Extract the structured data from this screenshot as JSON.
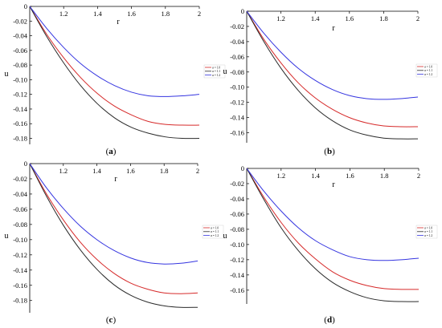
{
  "chart_data": [
    {
      "panel": "a",
      "type": "line",
      "xlabel": "r",
      "ylabel": "u",
      "xlim": [
        1.0,
        2.0
      ],
      "ylim": [
        -0.186,
        0.0
      ],
      "xticks": [
        "1.2",
        "1.4",
        "1.6",
        "1.8",
        "2"
      ],
      "xtick_values": [
        1.2,
        1.4,
        1.6,
        1.8,
        2.0
      ],
      "yticks": [
        "0",
        "-0.02",
        "-0.04",
        "-0.06",
        "-0.08",
        "-0.10",
        "-0.12",
        "-0.14",
        "-0.16",
        "-0.18"
      ],
      "ytick_values": [
        0,
        -0.02,
        -0.04,
        -0.06,
        -0.08,
        -0.1,
        -0.12,
        -0.14,
        -0.16,
        -0.18
      ],
      "legend_position": "right",
      "series": [
        {
          "name": "α = 1.0",
          "color": "#d62a2a",
          "x": [
            1.0,
            1.1,
            1.2,
            1.3,
            1.4,
            1.5,
            1.6,
            1.7,
            1.8,
            1.9,
            2.0
          ],
          "y": [
            0,
            -0.038,
            -0.07,
            -0.097,
            -0.119,
            -0.136,
            -0.148,
            -0.157,
            -0.161,
            -0.162,
            -0.162
          ]
        },
        {
          "name": "α = 1.1",
          "color": "#2a2a2a",
          "x": [
            1.0,
            1.1,
            1.2,
            1.3,
            1.4,
            1.5,
            1.6,
            1.7,
            1.8,
            1.9,
            2.0
          ],
          "y": [
            0,
            -0.041,
            -0.077,
            -0.108,
            -0.133,
            -0.152,
            -0.165,
            -0.173,
            -0.178,
            -0.18,
            -0.18
          ]
        },
        {
          "name": "α = 1.2",
          "color": "#3535e0",
          "x": [
            1.0,
            1.1,
            1.2,
            1.3,
            1.4,
            1.5,
            1.6,
            1.7,
            1.8,
            1.9,
            2.0
          ],
          "y": [
            0,
            -0.03,
            -0.056,
            -0.078,
            -0.095,
            -0.108,
            -0.117,
            -0.122,
            -0.123,
            -0.122,
            -0.12
          ]
        }
      ]
    },
    {
      "panel": "b",
      "type": "line",
      "xlabel": "r",
      "ylabel": "u",
      "xlim": [
        1.0,
        2.0
      ],
      "ylim": [
        -0.171,
        0.0
      ],
      "xticks": [
        "1.2",
        "1.4",
        "1.6",
        "1.8",
        "2"
      ],
      "xtick_values": [
        1.2,
        1.4,
        1.6,
        1.8,
        2.0
      ],
      "yticks": [
        "0",
        "-0.02",
        "-0.04",
        "-0.06",
        "-0.08",
        "-0.10",
        "-0.12",
        "-0.14",
        "-0.16"
      ],
      "ytick_values": [
        0,
        -0.02,
        -0.04,
        -0.06,
        -0.08,
        -0.1,
        -0.12,
        -0.14,
        -0.16
      ],
      "legend_position": "right",
      "series": [
        {
          "name": "α = 1.0",
          "color": "#d62a2a",
          "x": [
            1.0,
            1.1,
            1.2,
            1.3,
            1.4,
            1.5,
            1.6,
            1.7,
            1.8,
            1.9,
            2.0
          ],
          "y": [
            0,
            -0.037,
            -0.068,
            -0.094,
            -0.114,
            -0.129,
            -0.14,
            -0.147,
            -0.151,
            -0.152,
            -0.152
          ]
        },
        {
          "name": "α = 1.1",
          "color": "#2a2a2a",
          "x": [
            1.0,
            1.1,
            1.2,
            1.3,
            1.4,
            1.5,
            1.6,
            1.7,
            1.8,
            1.9,
            2.0
          ],
          "y": [
            0,
            -0.04,
            -0.075,
            -0.104,
            -0.127,
            -0.144,
            -0.156,
            -0.163,
            -0.167,
            -0.168,
            -0.168
          ]
        },
        {
          "name": "α = 1.2",
          "color": "#3535e0",
          "x": [
            1.0,
            1.1,
            1.2,
            1.3,
            1.4,
            1.5,
            1.6,
            1.7,
            1.8,
            1.9,
            2.0
          ],
          "y": [
            0,
            -0.029,
            -0.054,
            -0.075,
            -0.091,
            -0.103,
            -0.111,
            -0.115,
            -0.116,
            -0.115,
            -0.113
          ]
        }
      ]
    },
    {
      "panel": "c",
      "type": "line",
      "xlabel": "r",
      "ylabel": "u",
      "xlim": [
        1.0,
        2.0
      ],
      "ylim": [
        -0.194,
        0.0
      ],
      "xticks": [
        "1.2",
        "1.4",
        "1.6",
        "1.8",
        "2"
      ],
      "xtick_values": [
        1.2,
        1.4,
        1.6,
        1.8,
        2.0
      ],
      "yticks": [
        "0",
        "-0.02",
        "-0.04",
        "-0.06",
        "-0.08",
        "-0.10",
        "-0.12",
        "-0.14",
        "-0.16",
        "-0.18"
      ],
      "ytick_values": [
        0,
        -0.02,
        -0.04,
        -0.06,
        -0.08,
        -0.1,
        -0.12,
        -0.14,
        -0.16,
        -0.18
      ],
      "legend_position": "right",
      "series": [
        {
          "name": "α = 1.0",
          "color": "#d62a2a",
          "x": [
            1.0,
            1.1,
            1.2,
            1.3,
            1.4,
            1.5,
            1.6,
            1.7,
            1.8,
            1.9,
            2.0
          ],
          "y": [
            0,
            -0.04,
            -0.074,
            -0.103,
            -0.126,
            -0.144,
            -0.157,
            -0.165,
            -0.17,
            -0.171,
            -0.17
          ]
        },
        {
          "name": "α = 1.1",
          "color": "#2a2a2a",
          "x": [
            1.0,
            1.1,
            1.2,
            1.3,
            1.4,
            1.5,
            1.6,
            1.7,
            1.8,
            1.9,
            2.0
          ],
          "y": [
            0,
            -0.043,
            -0.081,
            -0.113,
            -0.139,
            -0.159,
            -0.173,
            -0.182,
            -0.187,
            -0.189,
            -0.189
          ]
        },
        {
          "name": "α = 1.2",
          "color": "#3535e0",
          "x": [
            1.0,
            1.1,
            1.2,
            1.3,
            1.4,
            1.5,
            1.6,
            1.7,
            1.8,
            1.9,
            2.0
          ],
          "y": [
            0,
            -0.032,
            -0.059,
            -0.082,
            -0.1,
            -0.114,
            -0.124,
            -0.13,
            -0.132,
            -0.131,
            -0.128
          ]
        }
      ]
    },
    {
      "panel": "d",
      "type": "line",
      "xlabel": "r",
      "ylabel": "u",
      "xlim": [
        1.0,
        2.0
      ],
      "ylim": [
        -0.176,
        0.0
      ],
      "xticks": [
        "1.2",
        "1.4",
        "1.6",
        "1.8",
        "2"
      ],
      "xtick_values": [
        1.2,
        1.4,
        1.6,
        1.8,
        2.0
      ],
      "yticks": [
        "0",
        "-0.02",
        "-0.04",
        "-0.06",
        "-0.08",
        "-0.10",
        "-0.12",
        "-0.14",
        "-0.16"
      ],
      "ytick_values": [
        0,
        -0.02,
        -0.04,
        -0.06,
        -0.08,
        -0.1,
        -0.12,
        -0.14,
        -0.16
      ],
      "legend_position": "right",
      "series": [
        {
          "name": "α = 1.0",
          "color": "#d62a2a",
          "x": [
            1.0,
            1.1,
            1.2,
            1.3,
            1.4,
            1.5,
            1.6,
            1.7,
            1.8,
            1.9,
            2.0
          ],
          "y": [
            0,
            -0.038,
            -0.071,
            -0.098,
            -0.119,
            -0.136,
            -0.147,
            -0.154,
            -0.158,
            -0.159,
            -0.159
          ]
        },
        {
          "name": "α = 1.1",
          "color": "#2a2a2a",
          "x": [
            1.0,
            1.1,
            1.2,
            1.3,
            1.4,
            1.5,
            1.6,
            1.7,
            1.8,
            1.9,
            2.0
          ],
          "y": [
            0,
            -0.041,
            -0.078,
            -0.108,
            -0.132,
            -0.15,
            -0.162,
            -0.17,
            -0.174,
            -0.175,
            -0.175
          ]
        },
        {
          "name": "α = 1.2",
          "color": "#3535e0",
          "x": [
            1.0,
            1.1,
            1.2,
            1.3,
            1.4,
            1.5,
            1.6,
            1.7,
            1.8,
            1.9,
            2.0
          ],
          "y": [
            0,
            -0.03,
            -0.056,
            -0.078,
            -0.095,
            -0.107,
            -0.116,
            -0.12,
            -0.121,
            -0.12,
            -0.118
          ]
        }
      ]
    }
  ],
  "captions": [
    "(a)",
    "(b)",
    "(c)",
    "(d)"
  ],
  "caption_letters": [
    "a",
    "b",
    "c",
    "d"
  ]
}
